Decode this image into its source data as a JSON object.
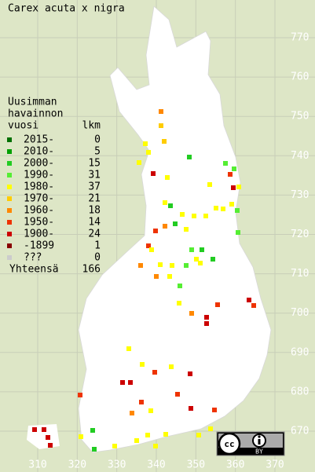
{
  "map": {
    "title": "Carex acuta x nigra",
    "legend": {
      "heading": [
        "Uusimman",
        "havainnon",
        "vuosi"
      ],
      "count_heading": "lkm",
      "rows": [
        {
          "label": "2015-",
          "count": 0,
          "color": "#007000"
        },
        {
          "label": "2010-",
          "count": 5,
          "color": "#00a000"
        },
        {
          "label": "2000-",
          "count": 15,
          "color": "#22cc22"
        },
        {
          "label": "1990-",
          "count": 31,
          "color": "#55ee33"
        },
        {
          "label": "1980-",
          "count": 37,
          "color": "#ffff00"
        },
        {
          "label": "1970-",
          "count": 21,
          "color": "#ffcc00"
        },
        {
          "label": "1960-",
          "count": 18,
          "color": "#ff8800"
        },
        {
          "label": "1950-",
          "count": 14,
          "color": "#ee3300"
        },
        {
          "label": "1900-",
          "count": 24,
          "color": "#cc0000"
        },
        {
          "label": "-1899",
          "count": 1,
          "color": "#880000"
        },
        {
          "label": "???",
          "count": 0,
          "color": "#cccccc"
        }
      ],
      "total_label": "Yhteensä",
      "total": 166
    },
    "yticks": [
      770,
      760,
      750,
      740,
      730,
      720,
      710,
      700,
      690,
      680,
      670
    ],
    "xticks": [
      310,
      320,
      330,
      340,
      350,
      360,
      370
    ],
    "license": "BY"
  }
}
